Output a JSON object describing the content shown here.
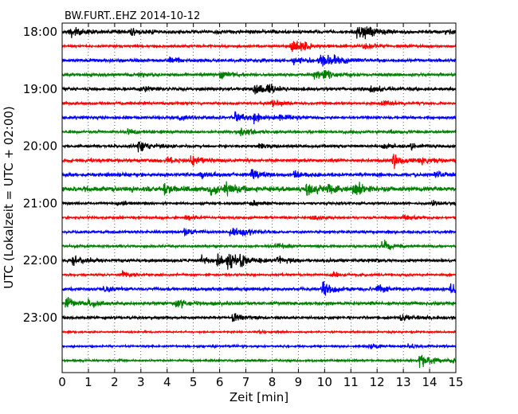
{
  "chart_data": {
    "type": "line",
    "title": "BW.FURT..EHZ 2014-10-12",
    "xlabel": "Zeit  [min]",
    "ylabel": "UTC (Lokalzeit = UTC + 02:00)",
    "xlim": [
      0,
      15
    ],
    "x_ticks": [
      0,
      1,
      2,
      3,
      4,
      5,
      6,
      7,
      8,
      9,
      10,
      11,
      12,
      13,
      14,
      15
    ],
    "x_tick_labels": [
      "0",
      "1",
      "2",
      "3",
      "4",
      "5",
      "6",
      "7",
      "8",
      "9",
      "10",
      "11",
      "12",
      "13",
      "14",
      "15"
    ],
    "y_tick_labels": [
      "18:00",
      "19:00",
      "20:00",
      "21:00",
      "22:00",
      "23:00"
    ],
    "y_tick_trace_index": [
      0,
      4,
      8,
      12,
      16,
      20
    ],
    "grid": "vertical dotted",
    "trace_colors": [
      "#000000",
      "#ff0000",
      "#0000ff",
      "#008000"
    ],
    "traces": [
      {
        "start": "18:00",
        "color": "#000000",
        "base_amplitude": 0.22,
        "events": [
          [
            0.3,
            0.45
          ],
          [
            2.6,
            0.4
          ],
          [
            11.2,
            0.9
          ],
          [
            11.5,
            0.7
          ],
          [
            14.6,
            0.3
          ]
        ]
      },
      {
        "start": "18:15",
        "color": "#ff0000",
        "base_amplitude": 0.15,
        "events": [
          [
            8.7,
            0.85
          ],
          [
            9.1,
            0.5
          ],
          [
            11.5,
            0.45
          ]
        ]
      },
      {
        "start": "18:30",
        "color": "#0000ff",
        "base_amplitude": 0.2,
        "events": [
          [
            4.1,
            0.3
          ],
          [
            8.8,
            0.45
          ],
          [
            9.8,
            1.0
          ],
          [
            10.4,
            0.6
          ]
        ]
      },
      {
        "start": "18:45",
        "color": "#008000",
        "base_amplitude": 0.18,
        "events": [
          [
            2.9,
            0.3
          ],
          [
            6.0,
            0.55
          ],
          [
            9.6,
            0.7
          ],
          [
            10.0,
            0.5
          ]
        ]
      },
      {
        "start": "19:00",
        "color": "#000000",
        "base_amplitude": 0.2,
        "events": [
          [
            3.0,
            0.45
          ],
          [
            7.3,
            0.75
          ],
          [
            7.8,
            0.55
          ],
          [
            11.7,
            0.4
          ]
        ]
      },
      {
        "start": "19:15",
        "color": "#ff0000",
        "base_amplitude": 0.15,
        "events": [
          [
            8.0,
            0.5
          ],
          [
            12.2,
            0.4
          ]
        ]
      },
      {
        "start": "19:30",
        "color": "#0000ff",
        "base_amplitude": 0.18,
        "events": [
          [
            4.5,
            0.3
          ],
          [
            6.6,
            0.85
          ],
          [
            7.3,
            0.45
          ],
          [
            8.3,
            0.45
          ]
        ]
      },
      {
        "start": "19:45",
        "color": "#008000",
        "base_amplitude": 0.17,
        "events": [
          [
            2.5,
            0.35
          ],
          [
            6.8,
            0.55
          ],
          [
            12.5,
            0.3
          ]
        ]
      },
      {
        "start": "20:00",
        "color": "#000000",
        "base_amplitude": 0.16,
        "events": [
          [
            2.9,
            0.9
          ],
          [
            7.5,
            0.3
          ],
          [
            12.2,
            0.5
          ],
          [
            13.3,
            0.3
          ]
        ]
      },
      {
        "start": "20:15",
        "color": "#ff0000",
        "base_amplitude": 0.2,
        "events": [
          [
            4.0,
            0.45
          ],
          [
            4.9,
            0.6
          ],
          [
            12.6,
            0.9
          ],
          [
            13.6,
            0.45
          ]
        ]
      },
      {
        "start": "20:30",
        "color": "#0000ff",
        "base_amplitude": 0.22,
        "events": [
          [
            5.3,
            0.4
          ],
          [
            7.2,
            0.6
          ],
          [
            8.8,
            0.45
          ],
          [
            14.2,
            0.4
          ]
        ]
      },
      {
        "start": "20:45",
        "color": "#008000",
        "base_amplitude": 0.3,
        "events": [
          [
            3.9,
            0.7
          ],
          [
            5.6,
            0.65
          ],
          [
            6.2,
            0.75
          ],
          [
            9.3,
            0.85
          ],
          [
            11.1,
            0.75
          ],
          [
            10.1,
            0.55
          ]
        ]
      },
      {
        "start": "21:00",
        "color": "#000000",
        "base_amplitude": 0.15,
        "events": [
          [
            2.1,
            0.3
          ],
          [
            7.2,
            0.35
          ],
          [
            14.1,
            0.35
          ]
        ]
      },
      {
        "start": "21:15",
        "color": "#ff0000",
        "base_amplitude": 0.14,
        "events": [
          [
            4.7,
            0.35
          ],
          [
            9.5,
            0.3
          ],
          [
            13.0,
            0.3
          ]
        ]
      },
      {
        "start": "21:30",
        "color": "#0000ff",
        "base_amplitude": 0.16,
        "events": [
          [
            4.6,
            0.5
          ],
          [
            6.4,
            0.75
          ],
          [
            6.9,
            0.45
          ]
        ]
      },
      {
        "start": "21:45",
        "color": "#008000",
        "base_amplitude": 0.15,
        "events": [
          [
            8.1,
            0.4
          ],
          [
            12.2,
            0.7
          ]
        ]
      },
      {
        "start": "22:00",
        "color": "#000000",
        "base_amplitude": 0.2,
        "events": [
          [
            0.4,
            0.5
          ],
          [
            5.3,
            0.45
          ],
          [
            5.9,
            0.85
          ],
          [
            6.3,
            0.8
          ],
          [
            6.8,
            0.55
          ],
          [
            8.2,
            0.55
          ]
        ]
      },
      {
        "start": "22:15",
        "color": "#ff0000",
        "base_amplitude": 0.13,
        "events": [
          [
            2.3,
            0.4
          ],
          [
            10.3,
            0.3
          ]
        ]
      },
      {
        "start": "22:30",
        "color": "#0000ff",
        "base_amplitude": 0.2,
        "events": [
          [
            1.6,
            0.3
          ],
          [
            9.9,
            0.9
          ],
          [
            12.0,
            0.5
          ],
          [
            14.8,
            0.6
          ]
        ]
      },
      {
        "start": "22:45",
        "color": "#008000",
        "base_amplitude": 0.2,
        "events": [
          [
            0.15,
            0.9
          ],
          [
            1.0,
            0.5
          ],
          [
            4.3,
            0.55
          ]
        ]
      },
      {
        "start": "23:00",
        "color": "#000000",
        "base_amplitude": 0.16,
        "events": [
          [
            6.5,
            0.65
          ],
          [
            12.9,
            0.45
          ]
        ]
      },
      {
        "start": "23:15",
        "color": "#ff0000",
        "base_amplitude": 0.1,
        "events": [
          [
            7.5,
            0.2
          ]
        ]
      },
      {
        "start": "23:30",
        "color": "#0000ff",
        "base_amplitude": 0.12,
        "events": [
          [
            11.7,
            0.3
          ],
          [
            13.2,
            0.25
          ]
        ]
      },
      {
        "start": "23:45",
        "color": "#008000",
        "base_amplitude": 0.13,
        "events": [
          [
            13.6,
            0.9
          ],
          [
            14.7,
            0.25
          ]
        ]
      }
    ]
  }
}
